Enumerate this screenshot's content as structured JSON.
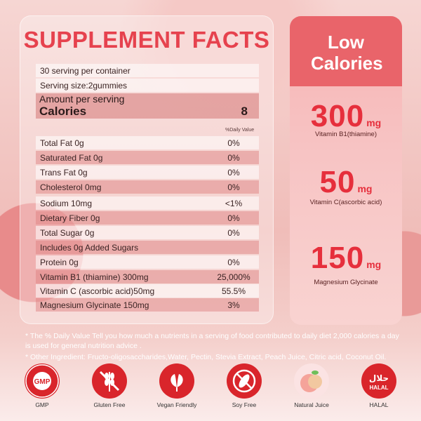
{
  "facts": {
    "title": "SUPPLEMENT FACTS",
    "servings_per_container": "30 serving per container",
    "serving_size": "Serving size:2gummies",
    "amount_label": "Amount per serving",
    "calories_label": "Calories",
    "calories_value": "8",
    "daily_value_header": "%Daily Value",
    "rows": [
      {
        "label": "Total Fat 0g",
        "value": "0%"
      },
      {
        "label": "Saturated Fat 0g",
        "value": "0%"
      },
      {
        "label": "Trans Fat 0g",
        "value": "0%"
      },
      {
        "label": "Cholesterol 0mg",
        "value": "0%"
      },
      {
        "label": "Sodium 10mg",
        "value": "<1%"
      },
      {
        "label": "Dietary Fiber 0g",
        "value": "0%"
      },
      {
        "label": "Total Sugar 0g",
        "value": "0%"
      },
      {
        "label": "Includes 0g Added Sugars",
        "value": ""
      },
      {
        "label": "Protein 0g",
        "value": "0%"
      },
      {
        "label": "Vitamin B1 (thiamine) 300mg",
        "value": "25,000%"
      },
      {
        "label": "Vitamin C (ascorbic acid)50mg",
        "value": "55.5%"
      },
      {
        "label": "Magnesium Glycinate 150mg",
        "value": "3%"
      }
    ]
  },
  "highlights": {
    "heading": "Low Calories",
    "items": [
      {
        "amount": "300",
        "unit": "mg",
        "name": "Vitamin B1(thiamine)"
      },
      {
        "amount": "50",
        "unit": "mg",
        "name": "Vitamin C(ascorbic acid)"
      },
      {
        "amount": "150",
        "unit": "mg",
        "name": "Magnesium Glycinate"
      }
    ]
  },
  "notes": {
    "daily_value": "* The % Daily Value Tell you how much a nutrients in a serving of food contributed to daily diet 2,000 calories a day is used for general nutrition advice .",
    "ingredients": "* Other Ingredient: Fructo-oligosaccharides,Water, Pectin, Stevia Extract, Peach Juice, Citric acid, Coconut Oil."
  },
  "badges": [
    {
      "icon": "gmp-seal-icon",
      "label": "GMP",
      "seal_text": "GMP",
      "ring_text": "GOOD MANUFACTURING PRACTICE"
    },
    {
      "icon": "gluten-free-icon",
      "label": "Gluten Free"
    },
    {
      "icon": "vegan-leaf-icon",
      "label": "Vegan Friendly"
    },
    {
      "icon": "soy-free-icon",
      "label": "Soy Free"
    },
    {
      "icon": "peach-icon",
      "label": "Natural Juice"
    },
    {
      "icon": "halal-icon",
      "label": "HALAL",
      "arabic": "حلال",
      "seal_text": "HALAL"
    }
  ],
  "colors": {
    "title_red": "#e6424e",
    "accent_red": "#e62f3c",
    "badge_red": "#d9252b"
  }
}
